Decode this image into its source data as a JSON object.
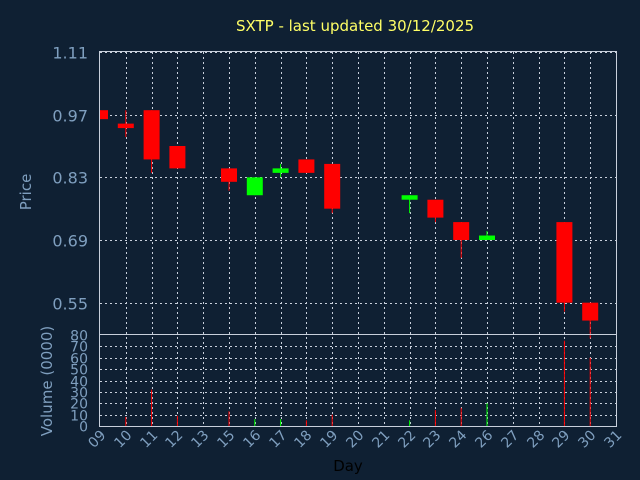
{
  "chart_data": {
    "type": "candlestick",
    "title": "SXTP - last updated 30/12/2025",
    "price_panel": {
      "ylabel": "Price",
      "yticks": [
        "1.11",
        "0.97",
        "0.83",
        "0.69",
        "0.55"
      ],
      "ylim": [
        0.48,
        1.11
      ]
    },
    "volume_panel": {
      "ylabel": "Volume (0000)",
      "yticks": [
        "80",
        "70",
        "60",
        "50",
        "40",
        "30",
        "20",
        "10",
        "0"
      ],
      "ylim": [
        0,
        80
      ]
    },
    "xlabel": "Day",
    "xticks": [
      "09",
      "10",
      "11",
      "12",
      "13",
      "15",
      "16",
      "17",
      "18",
      "19",
      "20",
      "21",
      "22",
      "23",
      "24",
      "26",
      "27",
      "28",
      "29",
      "30",
      "31"
    ],
    "up_color": "#00ff00",
    "down_color": "#ff0000",
    "candles": [
      {
        "day": "09",
        "open": 0.98,
        "high": 0.98,
        "low": 0.96,
        "close": 0.96,
        "volume": 0
      },
      {
        "day": "10",
        "open": 0.95,
        "high": 0.98,
        "low": 0.92,
        "close": 0.94,
        "volume": 8
      },
      {
        "day": "11",
        "open": 0.98,
        "high": 0.98,
        "low": 0.84,
        "close": 0.87,
        "volume": 32
      },
      {
        "day": "12",
        "open": 0.9,
        "high": 0.9,
        "low": 0.85,
        "close": 0.85,
        "volume": 9
      },
      {
        "day": "15",
        "open": 0.85,
        "high": 0.85,
        "low": 0.8,
        "close": 0.82,
        "volume": 13
      },
      {
        "day": "16",
        "open": 0.79,
        "high": 0.83,
        "low": 0.79,
        "close": 0.83,
        "volume": 6
      },
      {
        "day": "17",
        "open": 0.84,
        "high": 0.86,
        "low": 0.83,
        "close": 0.85,
        "volume": 6
      },
      {
        "day": "18",
        "open": 0.87,
        "high": 0.87,
        "low": 0.84,
        "close": 0.84,
        "volume": 5
      },
      {
        "day": "19",
        "open": 0.86,
        "high": 0.86,
        "low": 0.75,
        "close": 0.76,
        "volume": 10
      },
      {
        "day": "22",
        "open": 0.78,
        "high": 0.79,
        "low": 0.75,
        "close": 0.79,
        "volume": 5
      },
      {
        "day": "23",
        "open": 0.78,
        "high": 0.78,
        "low": 0.73,
        "close": 0.74,
        "volume": 14
      },
      {
        "day": "24",
        "open": 0.73,
        "high": 0.73,
        "low": 0.65,
        "close": 0.69,
        "volume": 16
      },
      {
        "day": "26",
        "open": 0.69,
        "high": 0.71,
        "low": 0.69,
        "close": 0.7,
        "volume": 20
      },
      {
        "day": "29",
        "open": 0.73,
        "high": 0.73,
        "low": 0.53,
        "close": 0.55,
        "volume": 75
      },
      {
        "day": "30",
        "open": 0.55,
        "high": 0.55,
        "low": 0.47,
        "close": 0.51,
        "volume": 60
      }
    ]
  }
}
